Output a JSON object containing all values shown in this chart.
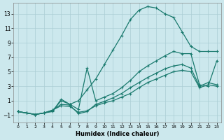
{
  "xlabel": "Humidex (Indice chaleur)",
  "ylabel": "",
  "bg_color": "#cce8ed",
  "grid_color": "#aacdd4",
  "line_color": "#1a7a6e",
  "xlim": [
    -0.5,
    23.5
  ],
  "ylim": [
    -2.0,
    14.5
  ],
  "yticks": [
    -1,
    1,
    3,
    5,
    7,
    9,
    11,
    13
  ],
  "xticks": [
    0,
    1,
    2,
    3,
    4,
    5,
    6,
    7,
    8,
    9,
    10,
    11,
    12,
    13,
    14,
    15,
    16,
    17,
    18,
    19,
    20,
    21,
    22,
    23
  ],
  "line1_x": [
    0,
    1,
    2,
    3,
    4,
    5,
    6,
    7,
    8,
    9,
    10,
    11,
    12,
    13,
    14,
    15,
    16,
    17,
    18,
    19,
    20,
    21,
    22,
    23
  ],
  "line1_y": [
    -0.5,
    -0.7,
    -0.9,
    -0.7,
    -0.5,
    1.2,
    0.5,
    1.0,
    2.5,
    4.0,
    6.0,
    8.0,
    10.0,
    12.2,
    13.5,
    14.0,
    13.8,
    13.0,
    12.5,
    10.5,
    8.5,
    7.8,
    7.8,
    7.8
  ],
  "line2_x": [
    0,
    1,
    2,
    3,
    4,
    5,
    6,
    7,
    8,
    9,
    10,
    11,
    12,
    13,
    14,
    15,
    16,
    17,
    18,
    19,
    20,
    21,
    22,
    23
  ],
  "line2_y": [
    -0.5,
    -0.7,
    -0.9,
    -0.7,
    -0.4,
    1.0,
    0.5,
    -0.2,
    5.5,
    1.0,
    1.5,
    2.0,
    2.8,
    3.8,
    5.0,
    5.8,
    6.5,
    7.2,
    7.8,
    7.5,
    7.5,
    3.2,
    3.0,
    6.5
  ],
  "line3_x": [
    0,
    1,
    2,
    3,
    4,
    5,
    6,
    7,
    8,
    9,
    10,
    11,
    12,
    13,
    14,
    15,
    16,
    17,
    18,
    19,
    20,
    21,
    22,
    23
  ],
  "line3_y": [
    -0.5,
    -0.7,
    -0.9,
    -0.7,
    -0.3,
    0.5,
    0.4,
    -0.8,
    -0.5,
    0.5,
    0.9,
    1.4,
    2.0,
    2.8,
    3.5,
    4.2,
    4.8,
    5.4,
    5.8,
    6.0,
    5.5,
    3.0,
    3.5,
    3.2
  ],
  "line4_x": [
    0,
    1,
    2,
    3,
    4,
    5,
    6,
    7,
    8,
    9,
    10,
    11,
    12,
    13,
    14,
    15,
    16,
    17,
    18,
    19,
    20,
    21,
    22,
    23
  ],
  "line4_y": [
    -0.5,
    -0.7,
    -0.9,
    -0.7,
    -0.3,
    0.3,
    0.2,
    -0.6,
    -0.4,
    0.3,
    0.7,
    1.0,
    1.5,
    2.0,
    2.8,
    3.5,
    4.0,
    4.5,
    5.0,
    5.2,
    5.0,
    2.8,
    3.2,
    3.0
  ],
  "marker_size": 2.5,
  "line_width": 0.9
}
